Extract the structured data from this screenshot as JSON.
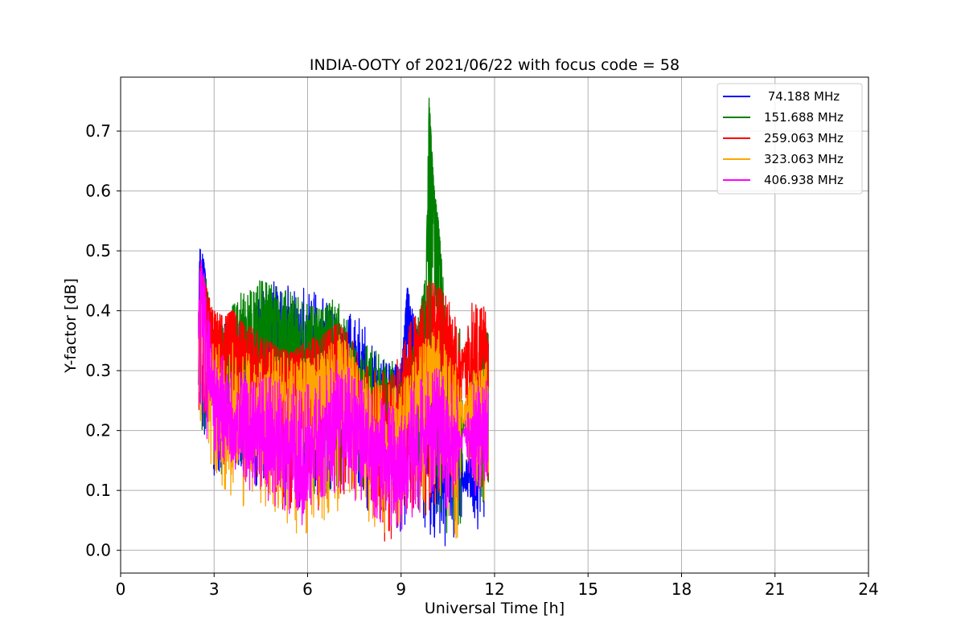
{
  "chart_data": {
    "type": "line",
    "title": "INDIA-OOTY of 2021/06/22 with focus code = 58",
    "xlabel": "Universal Time [h]",
    "ylabel": "Y-factor [dB]",
    "xlim": [
      0,
      24
    ],
    "ylim": [
      -0.038,
      0.79
    ],
    "xticks": [
      0,
      3,
      6,
      9,
      12,
      15,
      18,
      21,
      24
    ],
    "xtick_labels": [
      "0",
      "3",
      "6",
      "9",
      "12",
      "15",
      "18",
      "21",
      "24"
    ],
    "yticks": [
      0.0,
      0.1,
      0.2,
      0.3,
      0.4,
      0.5,
      0.6,
      0.7
    ],
    "ytick_labels": [
      "0.0",
      "0.1",
      "0.2",
      "0.3",
      "0.4",
      "0.5",
      "0.6",
      "0.7"
    ],
    "grid": true,
    "legend_position": "upper right",
    "series": [
      {
        "name": " 74.188 MHz",
        "color": "#0000ff",
        "x": [
          2.5,
          2.55,
          2.6,
          2.7,
          2.8,
          3.0,
          3.3,
          3.6,
          4.0,
          4.5,
          5.0,
          5.5,
          6.0,
          6.5,
          7.0,
          7.5,
          8.0,
          8.5,
          9.0,
          9.2,
          9.5,
          9.8,
          10.0,
          10.3,
          10.6,
          10.9,
          11.0,
          11.5,
          11.6,
          11.8
        ],
        "y": [
          0.35,
          0.54,
          0.42,
          0.51,
          0.38,
          0.3,
          0.28,
          0.32,
          0.3,
          0.33,
          0.36,
          0.3,
          0.32,
          0.33,
          0.3,
          0.27,
          0.25,
          0.23,
          0.27,
          0.44,
          0.3,
          0.22,
          0.18,
          0.17,
          0.12,
          0.18,
          0.11,
          0.13,
          0.22,
          0.3
        ],
        "min": [
          0.25,
          0.22,
          0.2,
          0.17,
          0.15,
          0.12,
          0.12,
          0.13,
          0.12,
          0.1,
          0.08,
          0.06,
          0.07,
          0.08,
          0.1,
          0.1,
          0.06,
          0.05,
          0.02,
          0.04,
          0.05,
          0.03,
          0.02,
          0.0,
          0.01,
          0.02,
          0.1,
          0.03,
          0.05,
          0.04
        ],
        "max": [
          0.54,
          0.5,
          0.51,
          0.47,
          0.42,
          0.37,
          0.38,
          0.38,
          0.41,
          0.44,
          0.45,
          0.44,
          0.44,
          0.42,
          0.4,
          0.4,
          0.36,
          0.33,
          0.3,
          0.44,
          0.37,
          0.35,
          0.33,
          0.28,
          0.27,
          0.25,
          0.12,
          0.35,
          0.39,
          0.38
        ]
      },
      {
        "name": "151.688 MHz",
        "color": "#008000",
        "x": [
          2.5,
          2.6,
          2.8,
          3.0,
          3.3,
          3.6,
          4.0,
          4.5,
          5.0,
          5.5,
          6.0,
          6.5,
          7.0,
          7.5,
          8.0,
          8.5,
          9.0,
          9.3,
          9.6,
          9.8,
          9.9,
          10.05,
          10.2,
          10.4,
          10.6,
          10.9,
          11.0,
          11.3,
          11.6,
          11.8
        ],
        "y": [
          0.33,
          0.45,
          0.36,
          0.3,
          0.29,
          0.32,
          0.33,
          0.37,
          0.38,
          0.33,
          0.32,
          0.35,
          0.33,
          0.27,
          0.24,
          0.23,
          0.22,
          0.3,
          0.35,
          0.42,
          0.755,
          0.61,
          0.5,
          0.33,
          0.25,
          0.2,
          0.21,
          0.21,
          0.3,
          0.32
        ],
        "min": [
          0.25,
          0.2,
          0.18,
          0.15,
          0.12,
          0.14,
          0.13,
          0.12,
          0.12,
          0.1,
          0.07,
          0.08,
          0.1,
          0.12,
          0.08,
          0.06,
          0.05,
          0.06,
          0.06,
          0.05,
          0.05,
          0.05,
          0.04,
          0.02,
          0.03,
          0.03,
          0.2,
          0.12,
          0.08,
          0.08
        ],
        "max": [
          0.5,
          0.46,
          0.45,
          0.38,
          0.39,
          0.41,
          0.45,
          0.45,
          0.44,
          0.43,
          0.41,
          0.4,
          0.43,
          0.35,
          0.34,
          0.33,
          0.3,
          0.33,
          0.4,
          0.46,
          0.755,
          0.61,
          0.55,
          0.42,
          0.38,
          0.37,
          0.21,
          0.33,
          0.38,
          0.36
        ]
      },
      {
        "name": "259.063 MHz",
        "color": "#ff0000",
        "x": [
          2.5,
          2.6,
          2.8,
          3.0,
          3.3,
          3.6,
          4.0,
          4.5,
          5.0,
          5.5,
          6.0,
          6.5,
          7.0,
          7.5,
          8.0,
          8.5,
          9.0,
          9.3,
          9.6,
          9.9,
          10.2,
          10.5,
          10.8,
          11.0,
          11.3,
          11.5,
          11.7,
          11.8
        ],
        "y": [
          0.34,
          0.44,
          0.38,
          0.35,
          0.34,
          0.37,
          0.33,
          0.3,
          0.31,
          0.28,
          0.29,
          0.3,
          0.32,
          0.25,
          0.21,
          0.2,
          0.24,
          0.31,
          0.33,
          0.36,
          0.38,
          0.34,
          0.3,
          0.32,
          0.35,
          0.37,
          0.33,
          0.34
        ],
        "min": [
          0.23,
          0.22,
          0.2,
          0.18,
          0.15,
          0.14,
          0.12,
          0.1,
          0.08,
          0.05,
          0.06,
          0.07,
          0.09,
          0.1,
          0.06,
          0.0,
          0.03,
          0.06,
          0.07,
          0.05,
          0.04,
          0.05,
          0.03,
          0.3,
          0.08,
          0.1,
          0.08,
          0.1
        ],
        "max": [
          0.5,
          0.47,
          0.43,
          0.4,
          0.39,
          0.4,
          0.38,
          0.36,
          0.34,
          0.33,
          0.35,
          0.36,
          0.38,
          0.35,
          0.3,
          0.3,
          0.33,
          0.38,
          0.4,
          0.45,
          0.44,
          0.42,
          0.38,
          0.33,
          0.42,
          0.4,
          0.41,
          0.38
        ]
      },
      {
        "name": "323.063 MHz",
        "color": "#ffa500",
        "x": [
          2.5,
          2.6,
          2.8,
          3.0,
          3.3,
          3.6,
          4.0,
          4.5,
          5.0,
          5.5,
          6.0,
          6.5,
          7.0,
          7.5,
          8.0,
          8.5,
          9.0,
          9.3,
          9.6,
          9.9,
          10.2,
          10.5,
          10.8,
          11.0,
          11.3,
          11.6,
          11.8
        ],
        "y": [
          0.3,
          0.4,
          0.3,
          0.25,
          0.22,
          0.23,
          0.22,
          0.24,
          0.26,
          0.24,
          0.25,
          0.27,
          0.28,
          0.24,
          0.2,
          0.18,
          0.19,
          0.23,
          0.25,
          0.28,
          0.27,
          0.25,
          0.23,
          0.22,
          0.24,
          0.25,
          0.27
        ],
        "min": [
          0.2,
          0.18,
          0.15,
          0.12,
          0.1,
          0.07,
          0.06,
          0.05,
          0.04,
          0.03,
          0.0,
          0.04,
          0.06,
          0.07,
          0.04,
          0.02,
          0.03,
          0.05,
          0.06,
          0.07,
          0.06,
          0.05,
          0.01,
          0.22,
          0.06,
          0.07,
          0.07
        ],
        "max": [
          0.45,
          0.43,
          0.38,
          0.35,
          0.34,
          0.35,
          0.33,
          0.32,
          0.34,
          0.32,
          0.32,
          0.33,
          0.36,
          0.34,
          0.3,
          0.28,
          0.28,
          0.32,
          0.34,
          0.36,
          0.37,
          0.33,
          0.32,
          0.24,
          0.3,
          0.3,
          0.32
        ]
      },
      {
        "name": "406.938 MHz",
        "color": "#ff00ff",
        "x": [
          2.5,
          2.6,
          2.8,
          3.0,
          3.3,
          3.6,
          4.0,
          4.5,
          5.0,
          5.5,
          5.8,
          6.0,
          6.5,
          7.0,
          7.5,
          8.0,
          8.5,
          9.0,
          9.3,
          9.6,
          9.9,
          10.2,
          10.5,
          10.8,
          11.0,
          11.3,
          11.6,
          11.8
        ],
        "y": [
          0.35,
          0.45,
          0.32,
          0.27,
          0.24,
          0.22,
          0.2,
          0.19,
          0.18,
          0.16,
          0.12,
          0.16,
          0.19,
          0.21,
          0.2,
          0.17,
          0.15,
          0.14,
          0.17,
          0.18,
          0.2,
          0.21,
          0.19,
          0.17,
          0.2,
          0.18,
          0.19,
          0.21
        ],
        "min": [
          0.26,
          0.22,
          0.18,
          0.16,
          0.14,
          0.12,
          0.1,
          0.08,
          0.07,
          0.05,
          0.04,
          0.06,
          0.08,
          0.1,
          0.08,
          0.06,
          0.04,
          0.03,
          0.05,
          0.06,
          0.07,
          0.08,
          0.06,
          0.05,
          0.2,
          0.08,
          0.1,
          0.1
        ],
        "max": [
          0.45,
          0.49,
          0.42,
          0.36,
          0.33,
          0.32,
          0.31,
          0.3,
          0.29,
          0.28,
          0.27,
          0.28,
          0.3,
          0.32,
          0.3,
          0.27,
          0.25,
          0.24,
          0.28,
          0.29,
          0.3,
          0.31,
          0.29,
          0.27,
          0.2,
          0.28,
          0.29,
          0.3
        ]
      }
    ]
  }
}
